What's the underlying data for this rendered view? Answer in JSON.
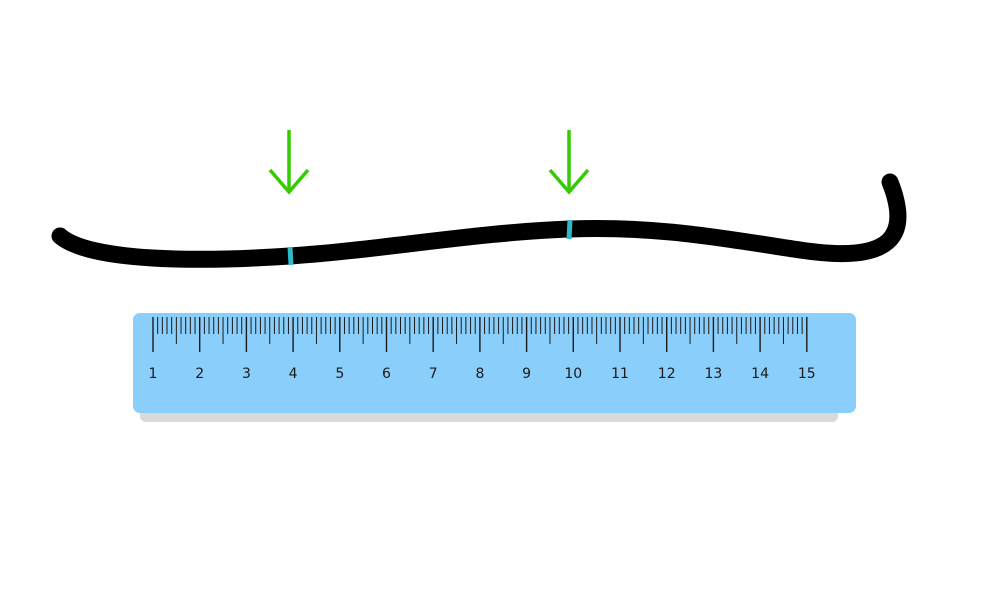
{
  "ruler": {
    "color": "#8ACFFB",
    "tick_color": "#1a1a1a",
    "labels": [
      "1",
      "2",
      "3",
      "4",
      "5",
      "6",
      "7",
      "8",
      "9",
      "10",
      "11",
      "12",
      "13",
      "14",
      "15"
    ]
  },
  "string": {
    "color": "#000000",
    "marker_color": "#2EB8C8",
    "marks_at_cm": [
      4,
      10
    ]
  },
  "arrows": {
    "color": "#33CC00",
    "count": 2
  }
}
